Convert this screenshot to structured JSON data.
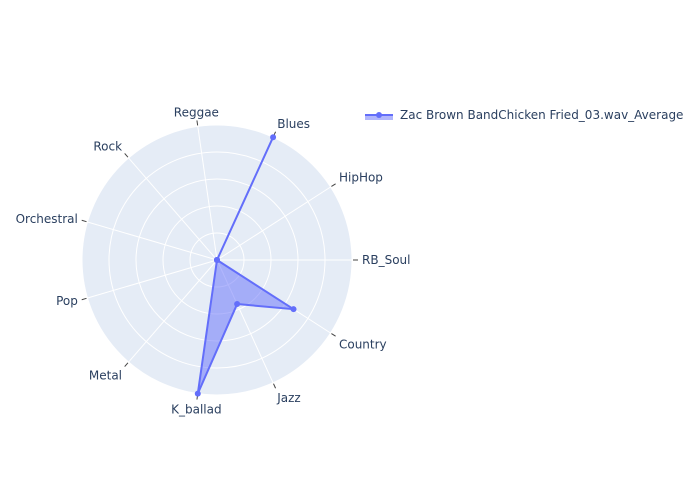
{
  "chart_data": {
    "type": "radar",
    "categories": [
      "RB_Soul",
      "Country",
      "Jazz",
      "K_ballad",
      "Metal",
      "Pop",
      "Orchestral",
      "Rock",
      "Reggae",
      "Blues",
      "HipHop"
    ],
    "series": [
      {
        "name": "Zac Brown BandChicken Fried_03.wav_Average",
        "values": [
          0.0,
          0.62,
          0.33,
          0.92,
          0.0,
          0.0,
          0.0,
          0.0,
          0.0,
          0.92,
          0.0
        ]
      }
    ],
    "rlim": [
      0,
      0.92
    ],
    "grid": true,
    "legend": "top-right",
    "colors": {
      "line": "#636efa",
      "fill": "#636efa",
      "polar_bg": "#e5ecf6",
      "grid": "#ffffff",
      "text": "#2a3f5f"
    }
  }
}
